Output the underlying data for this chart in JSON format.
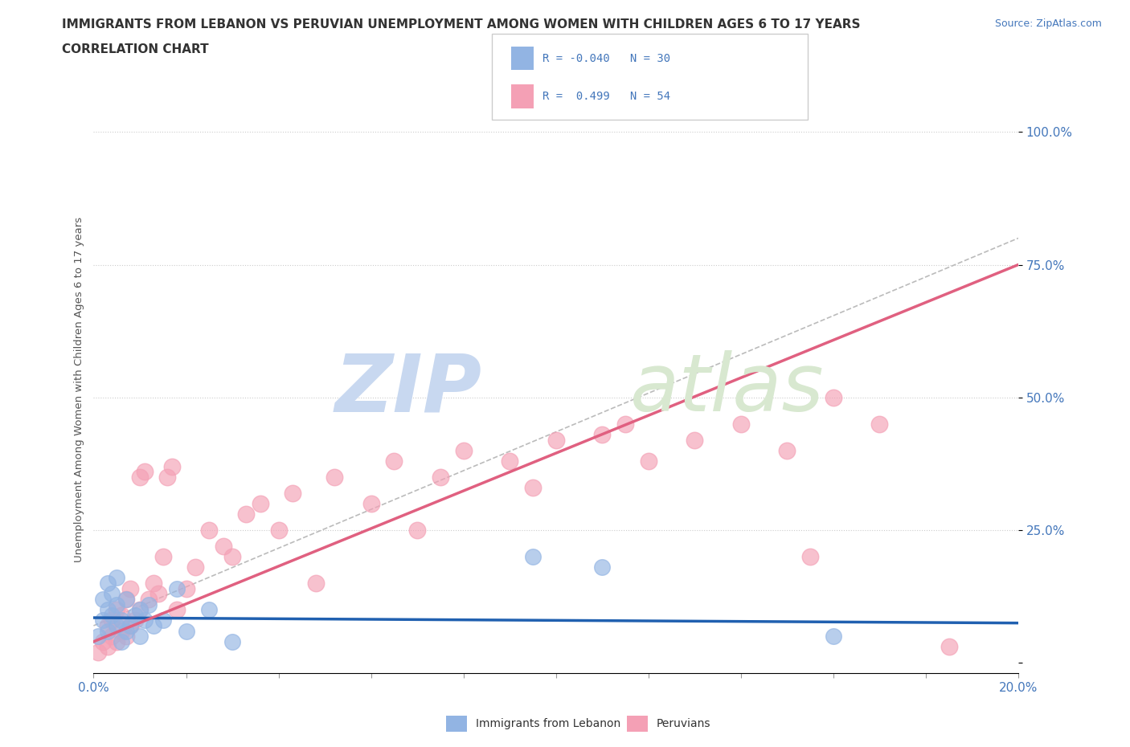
{
  "title": "IMMIGRANTS FROM LEBANON VS PERUVIAN UNEMPLOYMENT AMONG WOMEN WITH CHILDREN AGES 6 TO 17 YEARS",
  "subtitle": "CORRELATION CHART",
  "source": "Source: ZipAtlas.com",
  "xlabel": "",
  "ylabel": "Unemployment Among Women with Children Ages 6 to 17 years",
  "xlim": [
    0.0,
    0.2
  ],
  "ylim": [
    -0.02,
    1.05
  ],
  "color_lebanon": "#92b4e3",
  "color_peru": "#f4a0b5",
  "color_lebanon_line": "#2060b0",
  "color_peru_line": "#e06080",
  "R_lebanon": -0.04,
  "N_lebanon": 30,
  "R_peru": 0.499,
  "N_peru": 54,
  "legend_label_lebanon": "Immigrants from Lebanon",
  "legend_label_peru": "Peruvians",
  "lebanon_x": [
    0.001,
    0.002,
    0.002,
    0.003,
    0.003,
    0.003,
    0.004,
    0.004,
    0.005,
    0.005,
    0.005,
    0.006,
    0.006,
    0.007,
    0.007,
    0.008,
    0.009,
    0.01,
    0.01,
    0.011,
    0.012,
    0.013,
    0.015,
    0.018,
    0.02,
    0.025,
    0.03,
    0.095,
    0.11,
    0.16
  ],
  "lebanon_y": [
    0.05,
    0.08,
    0.12,
    0.06,
    0.1,
    0.15,
    0.09,
    0.13,
    0.07,
    0.11,
    0.16,
    0.04,
    0.08,
    0.06,
    0.12,
    0.07,
    0.09,
    0.05,
    0.1,
    0.08,
    0.11,
    0.07,
    0.08,
    0.14,
    0.06,
    0.1,
    0.04,
    0.2,
    0.18,
    0.05
  ],
  "peru_x": [
    0.001,
    0.002,
    0.003,
    0.003,
    0.004,
    0.004,
    0.005,
    0.005,
    0.006,
    0.006,
    0.007,
    0.007,
    0.008,
    0.008,
    0.009,
    0.01,
    0.01,
    0.011,
    0.012,
    0.013,
    0.014,
    0.015,
    0.016,
    0.017,
    0.018,
    0.02,
    0.022,
    0.025,
    0.028,
    0.03,
    0.033,
    0.036,
    0.04,
    0.043,
    0.048,
    0.052,
    0.06,
    0.065,
    0.07,
    0.075,
    0.08,
    0.09,
    0.095,
    0.1,
    0.11,
    0.115,
    0.12,
    0.13,
    0.14,
    0.15,
    0.155,
    0.16,
    0.17,
    0.185
  ],
  "peru_y": [
    0.02,
    0.04,
    0.03,
    0.07,
    0.05,
    0.08,
    0.04,
    0.1,
    0.06,
    0.09,
    0.05,
    0.12,
    0.07,
    0.14,
    0.08,
    0.1,
    0.35,
    0.36,
    0.12,
    0.15,
    0.13,
    0.2,
    0.35,
    0.37,
    0.1,
    0.14,
    0.18,
    0.25,
    0.22,
    0.2,
    0.28,
    0.3,
    0.25,
    0.32,
    0.15,
    0.35,
    0.3,
    0.38,
    0.25,
    0.35,
    0.4,
    0.38,
    0.33,
    0.42,
    0.43,
    0.45,
    0.38,
    0.42,
    0.45,
    0.4,
    0.2,
    0.5,
    0.45,
    0.03
  ]
}
